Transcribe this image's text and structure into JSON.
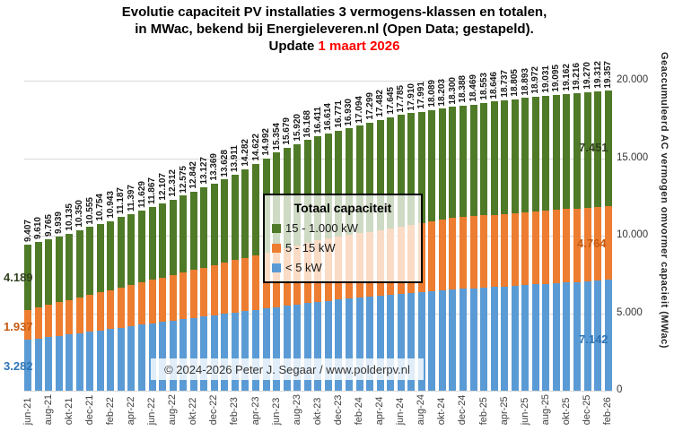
{
  "title": {
    "line1": "Evolutie capaciteit PV installaties 3 vermogens-klassen en totalen,",
    "line2": "in MWac, bekend bij Energieleveren.nl (Open Data; gestapeld).",
    "update_prefix": "Update ",
    "update_date": "1 maart 2026",
    "update_color": "#ff0000"
  },
  "legend": {
    "title": "Totaal capaciteit",
    "items": [
      {
        "label": "15 - 1.000 kW",
        "color": "#4f7a28"
      },
      {
        "label": "5 - 15 kW",
        "color": "#ed7d31"
      },
      {
        "label": "< 5 kW",
        "color": "#5b9bd5"
      }
    ]
  },
  "copyright": "© 2024-2026  Peter J. Segaar / www.polderpv.nl",
  "y_axis": {
    "title": "Geaccumuleerd AC vermogen omvormer capacieit (MWac)",
    "ticks": [
      "20.000",
      "15.000",
      "10.000",
      "5.000",
      "0"
    ]
  },
  "segment_labels": {
    "first_bar": [
      {
        "text": "4.189",
        "color": "#31421f"
      },
      {
        "text": "1.937",
        "color": "#c55a11"
      },
      {
        "text": "3.282",
        "color": "#2e74b5"
      }
    ],
    "last_bar": [
      {
        "text": "7.451",
        "color": "#31421f"
      },
      {
        "text": "4.764",
        "color": "#c55a11"
      },
      {
        "text": "7.142",
        "color": "#2e74b5"
      }
    ]
  },
  "chart_data": {
    "type": "bar",
    "stacked": true,
    "title": "Evolutie capaciteit PV installaties 3 vermogens-klassen en totalen, in MWac",
    "ylabel": "Geaccumuleerd AC vermogen omvormer capacieit (MWac)",
    "ylim": [
      0,
      20000
    ],
    "grid": true,
    "legend_position": "center",
    "x_tick_step": 2,
    "categories": [
      "jun-21",
      "jul-21",
      "aug-21",
      "sep-21",
      "okt-21",
      "nov-21",
      "dec-21",
      "jan-22",
      "feb-22",
      "mrt-22",
      "apr-22",
      "mei-22",
      "jun-22",
      "jul-22",
      "aug-22",
      "sep-22",
      "okt-22",
      "nov-22",
      "dec-22",
      "jan-23",
      "feb-23",
      "mrt-23",
      "apr-23",
      "mei-23",
      "jun-23",
      "jul-23",
      "aug-23",
      "sep-23",
      "okt-23",
      "nov-23",
      "dec-23",
      "jan-24",
      "feb-24",
      "mrt-24",
      "apr-24",
      "mei-24",
      "jun-24",
      "jul-24",
      "aug-24",
      "sep-24",
      "okt-24",
      "nov-24",
      "dec-24",
      "jan-25",
      "feb-25",
      "mrt-25",
      "apr-25",
      "mei-25",
      "jun-25",
      "jul-25",
      "aug-25",
      "sep-25",
      "okt-25",
      "nov-25",
      "dec-25",
      "jan-26",
      "feb-26"
    ],
    "totals_labels": [
      "9.407",
      "9.610",
      "9.765",
      "9.939",
      "10.135",
      "10.350",
      "10.555",
      "10.754",
      "10.943",
      "11.187",
      "11.397",
      "11.629",
      "11.867",
      "12.107",
      "12.312",
      "12.575",
      "12.842",
      "13.127",
      "13.369",
      "13.628",
      "13.911",
      "14.282",
      "14.622",
      "14.992",
      "15.354",
      "15.679",
      "15.920",
      "16.168",
      "16.411",
      "16.614",
      "16.771",
      "16.930",
      "17.094",
      "17.299",
      "17.482",
      "17.645",
      "17.785",
      "17.910",
      "17.991",
      "18.089",
      "18.203",
      "18.300",
      "18.388",
      "18.469",
      "18.553",
      "18.646",
      "18.737",
      "18.805",
      "18.893",
      "18.972",
      "19.031",
      "19.095",
      "19.162",
      "19.216",
      "19.270",
      "19.312",
      "19.357"
    ],
    "series": [
      {
        "name": "15 - 1.000 kW",
        "color": "#4f7a28",
        "values": [
          4189,
          4231,
          4226,
          4240,
          4275,
          4331,
          4376,
          4415,
          4444,
          4528,
          4578,
          4649,
          4727,
          4807,
          4852,
          4956,
          5063,
          5188,
          5269,
          5368,
          5491,
          5702,
          5882,
          6092,
          6295,
          6459,
          6540,
          6628,
          6711,
          6802,
          6846,
          6893,
          6945,
          7038,
          7108,
          7159,
          7187,
          7200,
          7168,
          7154,
          7156,
          7140,
          7178,
          7209,
          7244,
          7287,
          7328,
          7346,
          7384,
          7415,
          7424,
          7438,
          7455,
          7459,
          7464,
          7456,
          7451
        ]
      },
      {
        "name": "5 - 15 kW",
        "color": "#ed7d31",
        "values": [
          1937,
          2009,
          2081,
          2153,
          2225,
          2296,
          2368,
          2440,
          2512,
          2584,
          2656,
          2728,
          2800,
          2872,
          2944,
          3015,
          3087,
          3159,
          3231,
          3303,
          3375,
          3447,
          3519,
          3591,
          3662,
          3734,
          3806,
          3878,
          3950,
          4002,
          4055,
          4107,
          4159,
          4211,
          4264,
          4316,
          4368,
          4420,
          4473,
          4525,
          4577,
          4630,
          4639,
          4648,
          4657,
          4666,
          4675,
          4684,
          4693,
          4701,
          4710,
          4719,
          4728,
          4737,
          4746,
          4755,
          4764
        ]
      },
      {
        "name": "< 5 kW",
        "color": "#5b9bd5",
        "values": [
          3282,
          3370,
          3458,
          3546,
          3635,
          3723,
          3811,
          3899,
          3987,
          4075,
          4163,
          4252,
          4340,
          4428,
          4516,
          4604,
          4692,
          4780,
          4869,
          4957,
          5045,
          5133,
          5221,
          5309,
          5397,
          5486,
          5574,
          5662,
          5750,
          5810,
          5870,
          5930,
          5990,
          6050,
          6110,
          6170,
          6230,
          6290,
          6350,
          6410,
          6470,
          6530,
          6571,
          6612,
          6652,
          6693,
          6734,
          6775,
          6816,
          6856,
          6897,
          6938,
          6979,
          7020,
          7060,
          7101,
          7142
        ]
      }
    ]
  }
}
